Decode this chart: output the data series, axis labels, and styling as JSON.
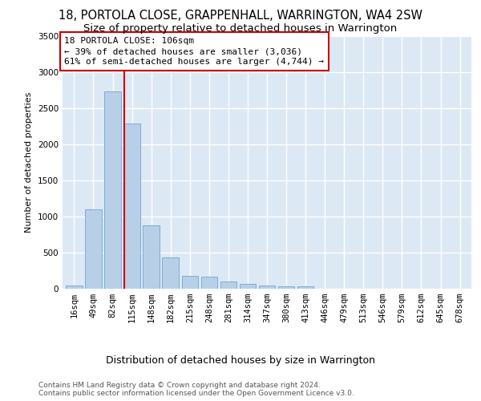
{
  "title1": "18, PORTOLA CLOSE, GRAPPENHALL, WARRINGTON, WA4 2SW",
  "title2": "Size of property relative to detached houses in Warrington",
  "xlabel": "Distribution of detached houses by size in Warrington",
  "ylabel": "Number of detached properties",
  "categories": [
    "16sqm",
    "49sqm",
    "82sqm",
    "115sqm",
    "148sqm",
    "182sqm",
    "215sqm",
    "248sqm",
    "281sqm",
    "314sqm",
    "347sqm",
    "380sqm",
    "413sqm",
    "446sqm",
    "479sqm",
    "513sqm",
    "546sqm",
    "579sqm",
    "612sqm",
    "645sqm",
    "678sqm"
  ],
  "values": [
    50,
    1100,
    2730,
    2290,
    875,
    430,
    175,
    165,
    95,
    65,
    50,
    30,
    30,
    5,
    5,
    0,
    0,
    0,
    0,
    0,
    0
  ],
  "bar_color": "#b8cfe8",
  "bar_edgecolor": "#7aadd4",
  "vline_x": 2.62,
  "vline_color": "#cc0000",
  "annotation_text": "18 PORTOLA CLOSE: 106sqm\n← 39% of detached houses are smaller (3,036)\n61% of semi-detached houses are larger (4,744) →",
  "annotation_box_color": "#ffffff",
  "annotation_box_edgecolor": "#cc0000",
  "ylim": [
    0,
    3500
  ],
  "yticks": [
    0,
    500,
    1000,
    1500,
    2000,
    2500,
    3000,
    3500
  ],
  "bg_color": "#dde8f5",
  "grid_color": "#ffffff",
  "footnote": "Contains HM Land Registry data © Crown copyright and database right 2024.\nContains public sector information licensed under the Open Government Licence v3.0.",
  "title1_fontsize": 10.5,
  "title2_fontsize": 9.5,
  "xlabel_fontsize": 9,
  "ylabel_fontsize": 8,
  "tick_fontsize": 7.5,
  "annot_fontsize": 8,
  "footnote_fontsize": 6.5
}
